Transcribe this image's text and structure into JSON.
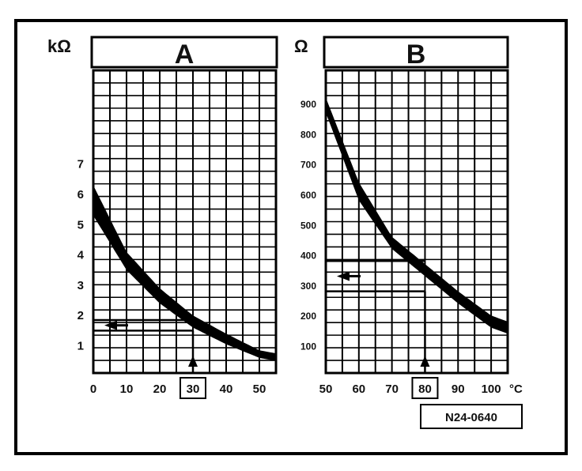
{
  "figure": {
    "code": "N24-0640"
  },
  "chart_data": [
    {
      "type": "line",
      "panel_title": "A",
      "ylabel": "kΩ",
      "xlabel": "",
      "x_ticks": [
        0,
        10,
        20,
        30,
        40,
        50
      ],
      "y_ticks": [
        1,
        2,
        3,
        4,
        5,
        6,
        7
      ],
      "xlim": [
        0,
        55
      ],
      "ylim": [
        0.1,
        10.1
      ],
      "band": {
        "x": [
          0,
          10,
          20,
          30,
          40,
          50,
          55
        ],
        "upper": [
          6.3,
          4.1,
          2.9,
          2.0,
          1.4,
          0.85,
          0.75
        ],
        "lower": [
          5.3,
          3.5,
          2.4,
          1.6,
          1.05,
          0.6,
          0.5
        ]
      },
      "reading": {
        "x": 30,
        "y_low": 1.5,
        "y_high": 1.85
      },
      "grid": true,
      "highlighted_tick": 30
    },
    {
      "type": "line",
      "panel_title": "B",
      "ylabel": "Ω",
      "xlabel": "°C",
      "x_ticks": [
        50,
        60,
        70,
        80,
        90,
        100
      ],
      "x_tick_labels": [
        "50",
        "60",
        "70",
        "80",
        "90",
        "100"
      ],
      "y_ticks": [
        100,
        200,
        300,
        400,
        500,
        600,
        700,
        800,
        900
      ],
      "xlim": [
        50,
        105
      ],
      "ylim": [
        10,
        1010
      ],
      "band": {
        "x": [
          50,
          60,
          70,
          80,
          90,
          100,
          105
        ],
        "upper": [
          920,
          640,
          460,
          370,
          280,
          200,
          180
        ],
        "lower": [
          870,
          580,
          420,
          330,
          240,
          160,
          140
        ]
      },
      "reading": {
        "x": 80,
        "y_low": 280,
        "y_high": 380
      },
      "grid": true,
      "highlighted_tick": 80
    }
  ]
}
